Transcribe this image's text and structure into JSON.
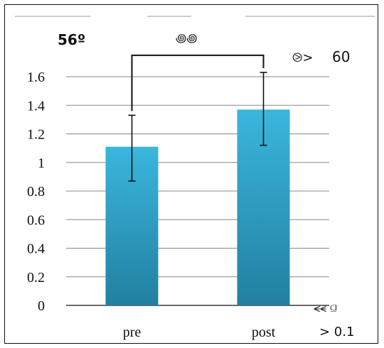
{
  "chart_data": {
    "type": "bar",
    "title": "56º",
    "title_glyph": "꩜꩜",
    "categories": [
      "pre",
      "post"
    ],
    "values": [
      1.11,
      1.37
    ],
    "errors": [
      [
        0.87,
        1.33
      ],
      [
        1.12,
        1.63
      ]
    ],
    "ylim": [
      0,
      1.6
    ],
    "yticks": [
      "0",
      "0.2",
      "0.4",
      "0.6",
      "0.8",
      "1",
      "1.2",
      "1.4",
      "1.6"
    ],
    "grid": true,
    "legend": "none",
    "colors": {
      "bar_top": "#3ab6dd",
      "bar_bottom": "#2280a0",
      "grid": "#888888",
      "axis": "#111111"
    },
    "annotations": {
      "n_label": "⧁>",
      "n_value": "60",
      "p_glyph": "⪪⪪ ⫑",
      "p_value": "> 0.1"
    },
    "bracket": {
      "from": "pre",
      "to": "post",
      "y": 1.75
    }
  }
}
